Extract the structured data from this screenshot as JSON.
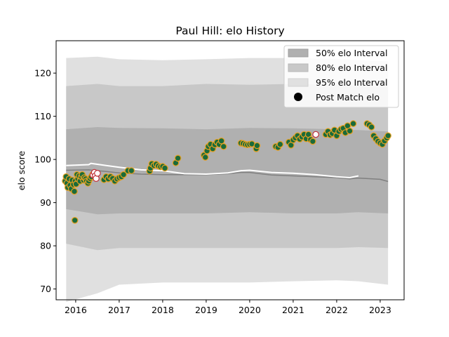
{
  "chart_data": {
    "type": "scatter",
    "title": "Paul Hill: elo History",
    "xlabel": "",
    "ylabel": "elo score",
    "xlim": [
      2015.55,
      2023.55
    ],
    "ylim": [
      67.5,
      127.5
    ],
    "xticks": [
      2016,
      2017,
      2018,
      2019,
      2020,
      2021,
      2022,
      2023
    ],
    "yticks": [
      70,
      80,
      90,
      100,
      110,
      120
    ],
    "grid": false,
    "legend_position": "top-right",
    "legend": [
      {
        "label": "50% elo Interval",
        "kind": "band",
        "color": "#b0b0b0"
      },
      {
        "label": "80% elo Interval",
        "kind": "band",
        "color": "#c8c8c8"
      },
      {
        "label": "95% elo Interval",
        "kind": "band",
        "color": "#e0e0e0"
      },
      {
        "label": "Post Match elo",
        "kind": "marker",
        "color": "#000000"
      }
    ],
    "bands": {
      "x": [
        2015.78,
        2016.5,
        2017.0,
        2018.0,
        2019.0,
        2020.0,
        2021.0,
        2022.0,
        2022.5,
        2023.18
      ],
      "p95": {
        "upper": [
          123.5,
          123.8,
          123.2,
          123.0,
          123.2,
          123.5,
          123.5,
          123.3,
          123.0,
          122.7
        ],
        "lower": [
          67.0,
          69.0,
          71.0,
          71.5,
          71.5,
          71.5,
          71.8,
          72.0,
          71.8,
          71.0
        ]
      },
      "p80": {
        "upper": [
          117.0,
          117.5,
          117.0,
          117.0,
          117.5,
          117.3,
          117.5,
          117.3,
          117.0,
          116.8
        ],
        "lower": [
          80.5,
          79.0,
          79.5,
          79.5,
          79.5,
          79.5,
          79.5,
          79.5,
          79.7,
          79.5
        ]
      },
      "p50": {
        "upper": [
          107.0,
          107.5,
          107.3,
          107.2,
          107.0,
          107.3,
          107.2,
          107.0,
          106.8,
          106.5
        ],
        "lower": [
          88.5,
          87.3,
          87.5,
          87.5,
          87.5,
          87.8,
          87.5,
          87.5,
          87.8,
          87.5
        ]
      }
    },
    "series": [
      {
        "kind": "mean_line",
        "color": "#808080",
        "x": [
          2015.78,
          2016.3,
          2016.7,
          2017.0,
          2017.5,
          2018.0,
          2018.5,
          2019.0,
          2019.5,
          2019.8,
          2020.0,
          2020.5,
          2021.0,
          2021.5,
          2022.0,
          2022.3,
          2022.5,
          2023.0,
          2023.18
        ],
        "y": [
          97.5,
          97.6,
          97.2,
          96.9,
          96.6,
          96.5,
          96.5,
          96.5,
          96.7,
          97.0,
          97.0,
          96.4,
          96.2,
          96.0,
          95.8,
          95.5,
          95.7,
          95.4,
          94.9
        ]
      },
      {
        "kind": "median_line",
        "color": "#ffffff",
        "x": [
          2015.78,
          2016.3,
          2016.35,
          2016.7,
          2017.0,
          2017.5,
          2018.0,
          2018.5,
          2019.0,
          2019.5,
          2019.8,
          2020.0,
          2020.5,
          2021.0,
          2021.5,
          2022.0,
          2022.3,
          2022.5
        ],
        "y": [
          98.6,
          98.8,
          99.1,
          98.6,
          98.2,
          97.6,
          97.4,
          96.7,
          96.6,
          96.9,
          97.4,
          97.5,
          97.0,
          96.8,
          96.5,
          96.0,
          95.8,
          96.2
        ]
      },
      {
        "name": "Post Match elo",
        "kind": "points",
        "face": "#1a6b3a",
        "edge": "#e8a020",
        "x": [
          2015.76,
          2015.78,
          2015.8,
          2015.82,
          2015.85,
          2015.87,
          2015.9,
          2015.92,
          2015.95,
          2015.97,
          2015.99,
          2016.01,
          2016.03,
          2016.05,
          2016.08,
          2016.1,
          2016.13,
          2016.15,
          2016.18,
          2016.2,
          2016.23,
          2016.25,
          2016.28,
          2016.3,
          2016.33,
          2016.36,
          2016.39,
          2015.98,
          2016.65,
          2016.7,
          2016.75,
          2016.8,
          2016.85,
          2016.9,
          2016.95,
          2017.0,
          2017.05,
          2017.1,
          2017.2,
          2017.28,
          2017.7,
          2017.72,
          2017.75,
          2017.8,
          2017.85,
          2017.9,
          2017.95,
          2018.0,
          2018.05,
          2018.3,
          2018.35,
          2018.95,
          2018.98,
          2019.02,
          2019.05,
          2019.1,
          2019.15,
          2019.2,
          2019.25,
          2019.3,
          2019.35,
          2019.4,
          2019.8,
          2019.85,
          2019.9,
          2019.95,
          2020.0,
          2020.05,
          2020.15,
          2020.17,
          2020.6,
          2020.65,
          2020.7,
          2020.9,
          2020.95,
          2021.0,
          2021.05,
          2021.1,
          2021.15,
          2021.2,
          2021.25,
          2021.3,
          2021.35,
          2021.4,
          2021.45,
          2021.75,
          2021.8,
          2021.85,
          2021.9,
          2021.95,
          2022.0,
          2022.05,
          2022.1,
          2022.15,
          2022.2,
          2022.25,
          2022.3,
          2022.38,
          2022.7,
          2022.75,
          2022.8,
          2022.85,
          2022.9,
          2022.95,
          2023.0,
          2023.05,
          2023.1,
          2023.15,
          2023.18
        ],
        "y": [
          95.0,
          96.0,
          94.5,
          93.5,
          95.5,
          94.0,
          93.2,
          95.2,
          94.2,
          92.6,
          95.0,
          94.3,
          96.5,
          95.5,
          96.2,
          95.0,
          96.0,
          96.5,
          95.2,
          95.8,
          95.5,
          95.0,
          94.5,
          95.0,
          95.6,
          96.0,
          96.5,
          85.9,
          95.3,
          96.0,
          95.5,
          96.0,
          95.6,
          95.0,
          95.5,
          95.8,
          96.0,
          96.5,
          97.4,
          97.4,
          97.3,
          98.0,
          99.0,
          98.6,
          98.9,
          98.5,
          98.3,
          98.4,
          98.0,
          99.2,
          100.3,
          101.0,
          100.5,
          102.0,
          103.0,
          103.5,
          102.5,
          103.4,
          104.0,
          103.5,
          104.3,
          103.0,
          103.8,
          103.7,
          103.5,
          103.4,
          103.5,
          103.6,
          102.5,
          103.2,
          103.0,
          102.8,
          103.5,
          104.0,
          103.3,
          104.5,
          105.0,
          105.5,
          104.7,
          105.2,
          105.8,
          104.8,
          105.8,
          104.6,
          104.2,
          105.8,
          106.5,
          105.7,
          106.0,
          106.8,
          105.5,
          106.5,
          107.0,
          107.2,
          106.2,
          107.8,
          106.6,
          108.3,
          108.3,
          108.0,
          107.5,
          105.5,
          104.8,
          104.2,
          103.8,
          103.5,
          104.3,
          105.0,
          105.5
        ]
      },
      {
        "name": "Post Match elo (alt)",
        "kind": "points",
        "face": "#ffffff",
        "edge": "#c0303a",
        "x": [
          2016.4,
          2016.43,
          2016.45,
          2016.47,
          2016.5,
          2021.52
        ],
        "y": [
          96.4,
          97.0,
          96.2,
          95.6,
          96.8,
          105.8
        ]
      }
    ]
  }
}
